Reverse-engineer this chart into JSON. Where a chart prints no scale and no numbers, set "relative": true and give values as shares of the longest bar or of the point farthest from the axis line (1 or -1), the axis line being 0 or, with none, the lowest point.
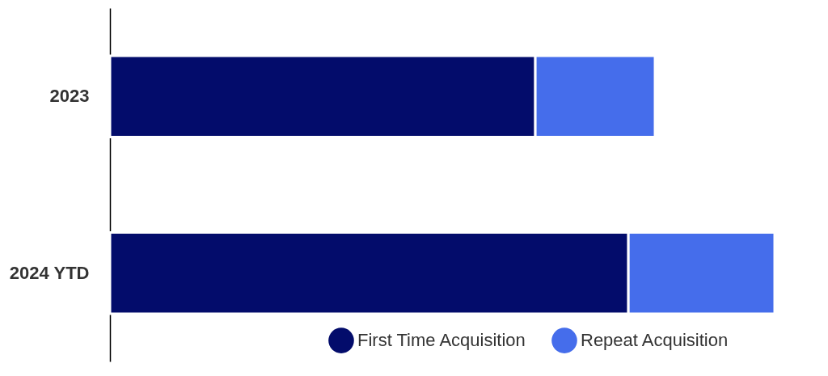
{
  "chart_data": {
    "type": "bar",
    "orientation": "horizontal",
    "stacked": true,
    "relative": true,
    "legend": "bottom",
    "categories": [
      "2023",
      "2024 YTD"
    ],
    "series": [
      {
        "name": "First Time Acquisition",
        "color": "#030c6b",
        "values": [
          0.64,
          0.78
        ]
      },
      {
        "name": "Repeat Acquisition",
        "color": "#456deb",
        "values": [
          0.18,
          0.22
        ]
      }
    ]
  }
}
